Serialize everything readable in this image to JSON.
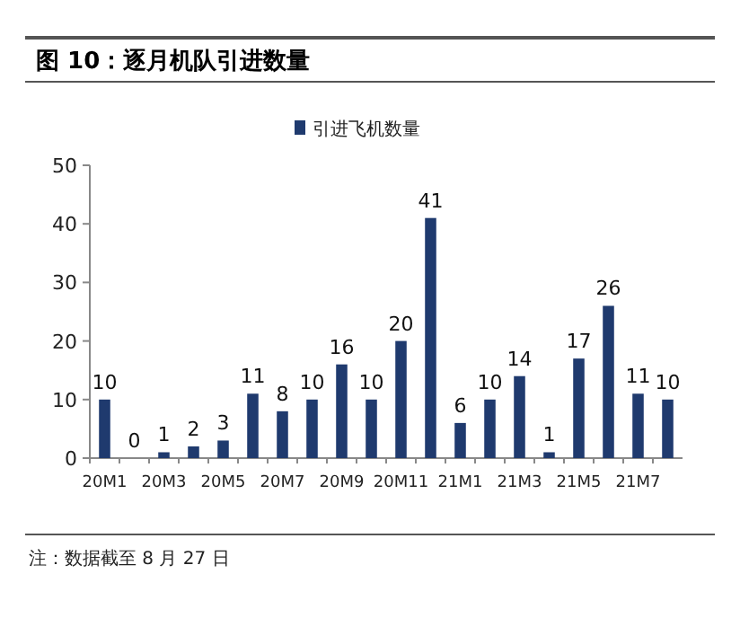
{
  "chart_data": {
    "type": "bar",
    "title": "图 10：逐月机队引进数量",
    "categories": [
      "20M1",
      null,
      "20M3",
      null,
      "20M5",
      null,
      "20M7",
      null,
      "20M9",
      null,
      "20M11",
      null,
      "21M1",
      null,
      "21M3",
      null,
      "21M5",
      null,
      "21M7",
      null
    ],
    "series": [
      {
        "name": "引进飞机数量",
        "color": "#1f3a6e",
        "values": [
          10,
          0,
          1,
          2,
          3,
          11,
          8,
          10,
          16,
          10,
          20,
          41,
          6,
          10,
          14,
          1,
          17,
          26,
          11,
          10
        ]
      }
    ],
    "ylim": [
      0,
      50
    ],
    "yticks": [
      0,
      10,
      20,
      30,
      40,
      50
    ],
    "data_labels": true,
    "legend": "top",
    "grid": false,
    "annotations": [
      "注：数据截至 8 月 27 日"
    ]
  }
}
